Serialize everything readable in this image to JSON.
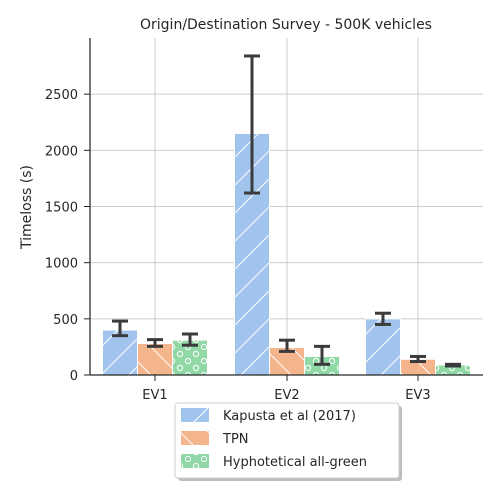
{
  "chart_data": {
    "type": "bar",
    "title": "Origin/Destination Survey - 500K vehicles",
    "xlabel": "",
    "ylabel": "Timeloss (s)",
    "categories": [
      "EV1",
      "EV2",
      "EV3"
    ],
    "ylim": [
      0,
      3000
    ],
    "yticks": [
      0,
      500,
      1000,
      1500,
      2000,
      2500
    ],
    "grid": true,
    "legend_position": "bottom-center",
    "series": [
      {
        "name": "Kapusta et al (2017)",
        "color": "#a1c4ec",
        "hatch": "diagonal",
        "values": [
          400,
          2150,
          500
        ],
        "error_low": [
          350,
          1620,
          450
        ],
        "error_high": [
          480,
          2840,
          550
        ]
      },
      {
        "name": "TPN",
        "color": "#f4b48c",
        "hatch": "backslash",
        "values": [
          280,
          245,
          140
        ],
        "error_low": [
          255,
          210,
          120
        ],
        "error_high": [
          315,
          310,
          165
        ]
      },
      {
        "name": "Hyphotetical all-green",
        "color": "#90d8a6",
        "hatch": "circles",
        "values": [
          310,
          165,
          90
        ],
        "error_low": [
          265,
          95,
          80
        ],
        "error_high": [
          365,
          255,
          95
        ]
      }
    ]
  }
}
